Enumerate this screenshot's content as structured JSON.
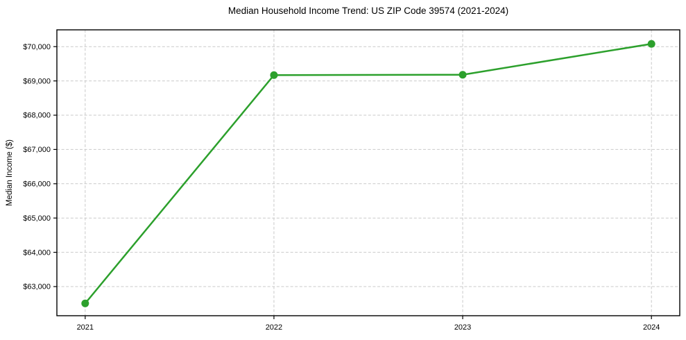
{
  "chart_data": {
    "type": "line",
    "title": "Median Household Income Trend: US ZIP Code 39574 (2021-2024)",
    "xlabel": "",
    "ylabel": "Median Income ($)",
    "x": [
      2021,
      2022,
      2023,
      2024
    ],
    "series": [
      {
        "name": "Median Household Income",
        "values": [
          62510,
          69170,
          69180,
          70080
        ],
        "color": "#2ca02c",
        "marker": "circle",
        "marker_radius": 5.5,
        "line_width": 2.5
      }
    ],
    "xticks": [
      2021,
      2022,
      2023,
      2024
    ],
    "xtick_labels": [
      "2021",
      "2022",
      "2023",
      "2024"
    ],
    "yticks": [
      63000,
      64000,
      65000,
      66000,
      67000,
      68000,
      69000,
      70000
    ],
    "ytick_labels": [
      "$63,000",
      "$64,000",
      "$65,000",
      "$66,000",
      "$67,000",
      "$68,000",
      "$69,000",
      "$70,000"
    ],
    "xlim": [
      2020.85,
      2024.15
    ],
    "ylim": [
      62150,
      70490
    ],
    "grid": true,
    "grid_style": "dashed",
    "grid_color": "#c9c9c9",
    "spine_color": "#000000",
    "tick_color": "#000000",
    "background": "#ffffff",
    "legend": "none"
  }
}
